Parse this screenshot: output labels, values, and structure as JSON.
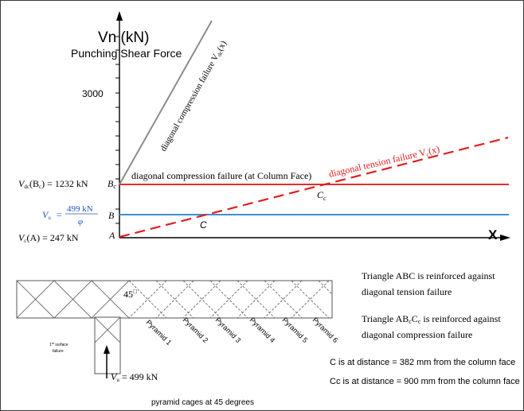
{
  "axes": {
    "y_title": "Vn (kN)",
    "y_subtitle": "Punching Shear Force",
    "y_tick_3000": "3000",
    "x_label": "X"
  },
  "labels": {
    "vdc_curve": "diagonal compression failure V",
    "vdc_curve_sub": "dc",
    "vdc_curve_arg": "(x)",
    "vc_curve": "diagonal tension failure V",
    "vc_curve_sub": "c",
    "vc_curve_arg": "(x)",
    "column_face_line": "diagonal compression failure (at Column Face)",
    "point_A": "A",
    "point_B": "B",
    "point_Bc": "B",
    "point_Bc_sub": "c",
    "point_C": "C",
    "point_Cc": "C",
    "point_Cc_sub": "c"
  },
  "left_values": {
    "vdc_lhs": "V",
    "vdc_lhs_sub": "dc",
    "vdc_lhs_arg": "(B",
    "vdc_lhs_arg_sub": "c",
    "vdc_rhs": ") = 1232 kN",
    "vu_lhs": "V",
    "vu_lhs_sub": "u",
    "vu_eq": "=",
    "vu_num": "499 kN",
    "vu_den": "φ",
    "vc_lhs": "V",
    "vc_lhs_sub": "c",
    "vc_rhs": "(A) = 247 kN"
  },
  "notes": {
    "abc_line1": "Triangle ABC is reinforced against",
    "abc_line2": "diagonal tension failure",
    "abcc_pre": "Triangle AB",
    "abcc_sub1": "c",
    "abcc_mid": "C",
    "abcc_sub2": "c",
    "abcc_post": " is reinforced against",
    "abcc_line2": "diagonal compression failure",
    "c_distance": "C is at distance = 382 mm from the column face",
    "cc_distance": "Cc is at distance = 900 mm from the column face"
  },
  "slab": {
    "angle": "45",
    "angle_mark": "□",
    "pyramids": [
      "Pyramid 1",
      "Pyramid 2",
      "Pyramid 3",
      "Pyramid 4",
      "Pyramid 5",
      "Pyramid 6"
    ],
    "surface_failure_1": "1",
    "surface_failure_sup": "st",
    "surface_failure_2": " surface",
    "surface_failure_3": "failure",
    "vu_label": "V",
    "vu_sub": "u",
    "vu_value": " = 499 kN",
    "caption": "pyramid cages at 45 degrees"
  },
  "colors": {
    "axis": "#000000",
    "vdc_line": "#8c8c8c",
    "column_face_line": "#e03030",
    "vu_line": "#3d8fd0",
    "vc_line": "#e02020",
    "vu_text": "#2255bb",
    "slab": "#555555"
  }
}
